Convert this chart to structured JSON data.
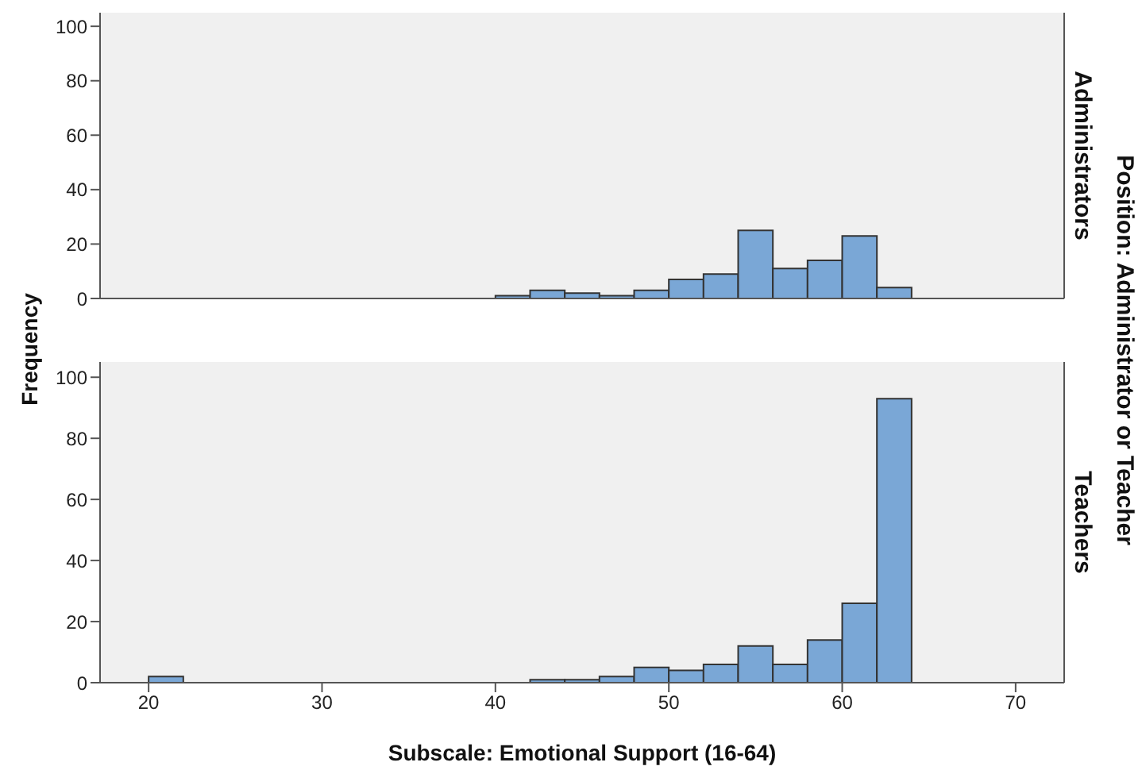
{
  "chart_data": [
    {
      "type": "histogram",
      "title": "Administrators",
      "ylabel": "Frequency",
      "y2label": "Position: Administrator or Teacher",
      "color": "#7aa7d6",
      "bins": [
        40,
        42,
        44,
        46,
        48,
        50,
        52,
        54,
        56,
        58,
        60,
        62,
        64
      ],
      "values": [
        1,
        3,
        2,
        1,
        3,
        7,
        9,
        25,
        11,
        14,
        23,
        4
      ],
      "xlim": [
        17.2,
        72.8
      ],
      "xticks": [
        20,
        30,
        40,
        50,
        60,
        70
      ],
      "ylim": [
        0,
        105
      ],
      "yticks": [
        0,
        20,
        40,
        60,
        80,
        100
      ],
      "tick_labels": "y",
      "grid": false
    },
    {
      "type": "histogram",
      "title": "Teachers",
      "xlabel": "Subscale: Emotional Support (16-64)",
      "color": "#7aa7d6",
      "bins": [
        20,
        22,
        24,
        26,
        28,
        30,
        32,
        34,
        36,
        38,
        40,
        42,
        44,
        46,
        48,
        50,
        52,
        54,
        56,
        58,
        60,
        62,
        64
      ],
      "values": [
        2,
        0,
        0,
        0,
        0,
        0,
        0,
        0,
        0,
        0,
        0,
        1,
        1,
        2,
        5,
        4,
        6,
        12,
        6,
        14,
        26,
        93
      ],
      "xlim": [
        17.2,
        72.8
      ],
      "xticks": [
        20,
        30,
        40,
        50,
        60,
        70
      ],
      "ylim": [
        0,
        105
      ],
      "yticks": [
        0,
        20,
        40,
        60,
        80,
        100
      ],
      "grid": false
    }
  ]
}
